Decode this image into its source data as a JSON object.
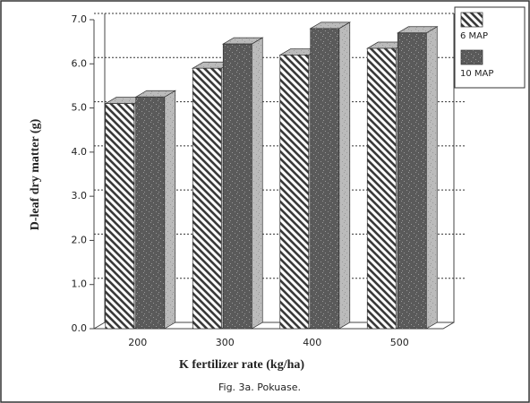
{
  "chart_data": {
    "type": "bar3d",
    "x_label": "K fertilizer rate (kg/ha)",
    "y_label": "D-leaf dry matter (g)",
    "caption": "Fig. 3a.  Pokuase.",
    "categories": [
      "200",
      "300",
      "400",
      "500"
    ],
    "series": [
      {
        "name": "6 MAP",
        "color": "#3a3a3a",
        "values": [
          5.1,
          5.9,
          6.2,
          6.35
        ]
      },
      {
        "name": "10 MAP",
        "color": "#5a5a5a",
        "values": [
          5.25,
          6.45,
          6.8,
          6.7
        ]
      }
    ],
    "ylim": [
      0,
      7
    ],
    "yticks": [
      {
        "value": 0,
        "label": "0.0"
      },
      {
        "value": 1,
        "label": "1.0"
      },
      {
        "value": 2,
        "label": "2.0"
      },
      {
        "value": 3,
        "label": "3.0"
      },
      {
        "value": 4,
        "label": "4.0"
      },
      {
        "value": 5,
        "label": "5.0"
      },
      {
        "value": 6,
        "label": "6.0"
      },
      {
        "value": 7,
        "label": "7.0"
      }
    ],
    "grid": true,
    "legend": "upper right"
  }
}
